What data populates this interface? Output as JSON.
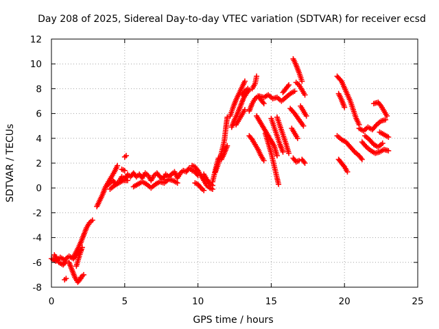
{
  "chart_data": {
    "type": "scatter",
    "title": "Day 208 of 2025, Sidereal Day-to-day VTEC variation (SDTVAR) for receiver ecsd",
    "xlabel": "GPS time / hours",
    "ylabel": "SDTVAR / TECUs",
    "xlim": [
      0,
      25
    ],
    "ylim": [
      -8,
      12
    ],
    "xticks": [
      0,
      5,
      10,
      15,
      20,
      25
    ],
    "xtick_labels": [
      "0",
      "5",
      "10",
      "15",
      "20",
      "25"
    ],
    "yticks": [
      -8,
      -6,
      -4,
      -2,
      0,
      2,
      4,
      6,
      8,
      10,
      12
    ],
    "ytick_labels": [
      "-8",
      "-6",
      "-4",
      "-2",
      "0",
      "2",
      "4",
      "6",
      "8",
      "10",
      "12"
    ],
    "grid": true,
    "marker": "+",
    "colors": {
      "series": "#ff0000",
      "grid": "#a0a0a0",
      "axis": "#000000"
    },
    "series": [
      {
        "name": "SDTVAR",
        "tracks": [
          [
            [
              0.0,
              -5.7
            ],
            [
              0.3,
              -5.9
            ],
            [
              0.6,
              -5.6
            ],
            [
              0.9,
              -5.8
            ],
            [
              1.2,
              -5.5
            ],
            [
              1.5,
              -5.7
            ],
            [
              1.8,
              -5.3
            ],
            [
              2.0,
              -5.0
            ]
          ],
          [
            [
              0.2,
              -5.4
            ],
            [
              0.5,
              -6.0
            ],
            [
              0.8,
              -6.2
            ],
            [
              1.0,
              -5.9
            ]
          ],
          [
            [
              1.2,
              -6.0
            ],
            [
              1.4,
              -6.6
            ],
            [
              1.6,
              -7.2
            ],
            [
              1.8,
              -7.6
            ],
            [
              2.0,
              -7.3
            ]
          ],
          [
            [
              0.9,
              -7.4
            ],
            [
              1.0,
              -7.3
            ]
          ],
          [
            [
              2.0,
              -7.2
            ],
            [
              2.2,
              -7.0
            ]
          ],
          [
            [
              1.5,
              -5.6
            ],
            [
              1.8,
              -4.9
            ],
            [
              2.0,
              -4.4
            ],
            [
              2.2,
              -3.8
            ],
            [
              2.4,
              -3.2
            ],
            [
              2.6,
              -2.8
            ],
            [
              2.8,
              -2.6
            ]
          ],
          [
            [
              1.7,
              -6.3
            ],
            [
              1.9,
              -5.5
            ],
            [
              2.1,
              -4.8
            ]
          ],
          [
            [
              3.1,
              -1.5
            ],
            [
              3.3,
              -1.0
            ],
            [
              3.5,
              -0.5
            ],
            [
              3.7,
              0.1
            ],
            [
              3.9,
              0.5
            ],
            [
              4.1,
              0.9
            ],
            [
              4.3,
              1.3
            ],
            [
              4.5,
              1.8
            ]
          ],
          [
            [
              3.8,
              0.2
            ],
            [
              4.0,
              0.4
            ],
            [
              4.2,
              0.6
            ],
            [
              4.4,
              0.3
            ],
            [
              4.6,
              0.5
            ],
            [
              4.8,
              0.9
            ],
            [
              5.0,
              0.7
            ],
            [
              5.2,
              1.1
            ],
            [
              5.4,
              0.9
            ],
            [
              5.6,
              1.2
            ],
            [
              5.8,
              0.9
            ],
            [
              6.0,
              1.1
            ],
            [
              6.2,
              0.8
            ],
            [
              6.4,
              1.2
            ],
            [
              6.6,
              1.0
            ],
            [
              6.8,
              0.6
            ],
            [
              7.0,
              1.0
            ],
            [
              7.2,
              1.2
            ],
            [
              7.4,
              0.9
            ],
            [
              7.6,
              0.7
            ],
            [
              7.8,
              1.1
            ],
            [
              8.0,
              0.9
            ],
            [
              8.2,
              1.1
            ],
            [
              8.4,
              1.3
            ],
            [
              8.6,
              0.8
            ],
            [
              8.8,
              1.2
            ],
            [
              9.0,
              1.4
            ],
            [
              9.2,
              1.3
            ],
            [
              9.4,
              1.6
            ],
            [
              9.6,
              1.4
            ],
            [
              9.8,
              1.3
            ],
            [
              10.0,
              1.0
            ]
          ],
          [
            [
              4.0,
              -0.1
            ],
            [
              4.3,
              0.2
            ],
            [
              4.6,
              0.4
            ],
            [
              4.9,
              0.6
            ],
            [
              5.2,
              0.6
            ]
          ],
          [
            [
              5.6,
              0.1
            ],
            [
              5.9,
              0.3
            ],
            [
              6.2,
              0.5
            ],
            [
              6.5,
              0.3
            ],
            [
              6.8,
              0.0
            ],
            [
              7.1,
              0.3
            ],
            [
              7.4,
              0.5
            ],
            [
              7.7,
              0.4
            ],
            [
              8.0,
              0.7
            ],
            [
              8.3,
              0.6
            ],
            [
              8.6,
              0.4
            ]
          ],
          [
            [
              5.0,
              2.5
            ],
            [
              5.1,
              2.6
            ]
          ],
          [
            [
              4.8,
              1.5
            ],
            [
              5.0,
              1.4
            ]
          ],
          [
            [
              9.6,
              1.8
            ],
            [
              9.8,
              1.7
            ],
            [
              10.0,
              1.4
            ],
            [
              10.2,
              1.0
            ],
            [
              10.4,
              0.6
            ],
            [
              10.6,
              0.2
            ],
            [
              10.8,
              0.0
            ],
            [
              11.0,
              -0.1
            ]
          ],
          [
            [
              9.8,
              0.4
            ],
            [
              10.0,
              0.3
            ],
            [
              10.2,
              0.0
            ],
            [
              10.4,
              -0.2
            ]
          ],
          [
            [
              10.4,
              1.1
            ],
            [
              10.6,
              0.7
            ],
            [
              10.8,
              0.4
            ],
            [
              11.0,
              0.2
            ]
          ],
          [
            [
              11.2,
              1.3
            ],
            [
              11.4,
              2.0
            ],
            [
              11.6,
              2.8
            ],
            [
              11.8,
              3.8
            ],
            [
              11.9,
              4.8
            ],
            [
              12.0,
              5.7
            ]
          ],
          [
            [
              11.0,
              0.5
            ],
            [
              11.2,
              1.5
            ],
            [
              11.4,
              2.4
            ]
          ],
          [
            [
              11.6,
              2.3
            ],
            [
              11.8,
              2.8
            ],
            [
              12.0,
              3.4
            ]
          ],
          [
            [
              12.2,
              5.8
            ],
            [
              12.4,
              6.5
            ],
            [
              12.6,
              7.1
            ],
            [
              12.8,
              7.6
            ],
            [
              13.0,
              8.1
            ],
            [
              13.2,
              8.6
            ]
          ],
          [
            [
              12.3,
              4.9
            ],
            [
              12.5,
              5.5
            ],
            [
              12.7,
              6.0
            ],
            [
              12.9,
              6.6
            ],
            [
              13.1,
              7.2
            ],
            [
              13.3,
              7.6
            ],
            [
              13.5,
              7.9
            ]
          ],
          [
            [
              12.6,
              5.1
            ],
            [
              12.8,
              5.5
            ],
            [
              13.0,
              5.9
            ],
            [
              13.2,
              6.3
            ]
          ],
          [
            [
              13.5,
              6.2
            ],
            [
              13.7,
              6.8
            ],
            [
              13.9,
              7.2
            ],
            [
              14.1,
              7.4
            ],
            [
              14.3,
              7.1
            ],
            [
              14.5,
              6.8
            ]
          ],
          [
            [
              13.7,
              8.0
            ],
            [
              13.9,
              8.4
            ],
            [
              14.0,
              9.0
            ]
          ],
          [
            [
              13.0,
              7.5
            ],
            [
              13.2,
              7.8
            ],
            [
              13.4,
              8.0
            ]
          ],
          [
            [
              13.5,
              4.2
            ],
            [
              13.7,
              3.9
            ],
            [
              13.9,
              3.5
            ],
            [
              14.1,
              3.1
            ],
            [
              14.3,
              2.6
            ],
            [
              14.5,
              2.2
            ]
          ],
          [
            [
              14.0,
              5.8
            ],
            [
              14.3,
              5.2
            ],
            [
              14.6,
              4.6
            ],
            [
              14.9,
              4.0
            ],
            [
              15.2,
              3.4
            ],
            [
              15.4,
              2.6
            ]
          ],
          [
            [
              14.2,
              7.4
            ],
            [
              14.5,
              7.3
            ],
            [
              14.8,
              7.5
            ],
            [
              15.1,
              7.2
            ],
            [
              15.4,
              7.3
            ],
            [
              15.7,
              7.0
            ],
            [
              16.0,
              7.3
            ],
            [
              16.3,
              7.6
            ],
            [
              16.6,
              7.8
            ]
          ],
          [
            [
              14.6,
              4.4
            ],
            [
              14.8,
              3.6
            ],
            [
              15.0,
              2.8
            ],
            [
              15.2,
              1.8
            ],
            [
              15.4,
              0.8
            ],
            [
              15.5,
              0.3
            ]
          ],
          [
            [
              15.0,
              5.6
            ],
            [
              15.2,
              4.9
            ],
            [
              15.4,
              4.2
            ],
            [
              15.6,
              3.5
            ],
            [
              15.8,
              2.9
            ]
          ],
          [
            [
              15.4,
              5.7
            ],
            [
              15.6,
              5.0
            ],
            [
              15.8,
              4.3
            ],
            [
              16.0,
              3.6
            ],
            [
              16.2,
              2.8
            ]
          ],
          [
            [
              15.8,
              7.7
            ],
            [
              16.0,
              8.0
            ],
            [
              16.2,
              8.3
            ]
          ],
          [
            [
              16.5,
              10.4
            ],
            [
              16.7,
              9.9
            ],
            [
              16.9,
              9.3
            ],
            [
              17.1,
              8.6
            ]
          ],
          [
            [
              16.3,
              6.4
            ],
            [
              16.6,
              6.0
            ],
            [
              16.9,
              5.5
            ],
            [
              17.2,
              5.0
            ]
          ],
          [
            [
              16.4,
              4.8
            ],
            [
              16.6,
              4.4
            ],
            [
              16.8,
              4.0
            ]
          ],
          [
            [
              16.5,
              2.4
            ],
            [
              16.7,
              2.1
            ],
            [
              16.9,
              2.2
            ]
          ],
          [
            [
              16.7,
              8.5
            ],
            [
              16.9,
              8.3
            ],
            [
              17.1,
              7.9
            ],
            [
              17.3,
              7.5
            ]
          ],
          [
            [
              17.0,
              6.6
            ],
            [
              17.2,
              6.2
            ],
            [
              17.4,
              5.8
            ]
          ],
          [
            [
              17.1,
              2.3
            ],
            [
              17.3,
              2.0
            ]
          ],
          [
            [
              19.5,
              9.0
            ],
            [
              19.8,
              8.6
            ],
            [
              20.1,
              7.8
            ],
            [
              20.4,
              7.0
            ],
            [
              20.6,
              6.3
            ],
            [
              20.8,
              5.6
            ],
            [
              21.0,
              5.1
            ]
          ],
          [
            [
              19.6,
              7.6
            ],
            [
              19.8,
              7.1
            ],
            [
              20.0,
              6.5
            ]
          ],
          [
            [
              19.5,
              4.2
            ],
            [
              19.8,
              3.9
            ],
            [
              20.1,
              3.7
            ],
            [
              20.4,
              3.3
            ],
            [
              20.7,
              2.9
            ],
            [
              21.0,
              2.6
            ],
            [
              21.2,
              2.3
            ]
          ],
          [
            [
              19.6,
              2.3
            ],
            [
              19.8,
              2.0
            ],
            [
              20.0,
              1.7
            ],
            [
              20.2,
              1.3
            ]
          ],
          [
            [
              21.0,
              4.8
            ],
            [
              21.3,
              4.6
            ],
            [
              21.6,
              4.9
            ],
            [
              21.9,
              4.7
            ],
            [
              22.2,
              5.1
            ],
            [
              22.5,
              5.4
            ],
            [
              22.8,
              5.5
            ]
          ],
          [
            [
              21.2,
              3.7
            ],
            [
              21.5,
              3.3
            ],
            [
              21.8,
              3.0
            ],
            [
              22.1,
              2.8
            ],
            [
              22.4,
              2.9
            ],
            [
              22.7,
              3.1
            ],
            [
              23.0,
              3.0
            ]
          ],
          [
            [
              21.4,
              4.2
            ],
            [
              21.7,
              3.9
            ],
            [
              22.0,
              3.5
            ],
            [
              22.3,
              3.3
            ],
            [
              22.6,
              3.6
            ]
          ],
          [
            [
              22.0,
              6.8
            ],
            [
              22.3,
              6.9
            ],
            [
              22.5,
              6.6
            ],
            [
              22.7,
              6.2
            ],
            [
              22.9,
              5.8
            ]
          ],
          [
            [
              22.4,
              4.5
            ],
            [
              22.7,
              4.3
            ],
            [
              23.0,
              4.1
            ]
          ]
        ]
      }
    ]
  }
}
